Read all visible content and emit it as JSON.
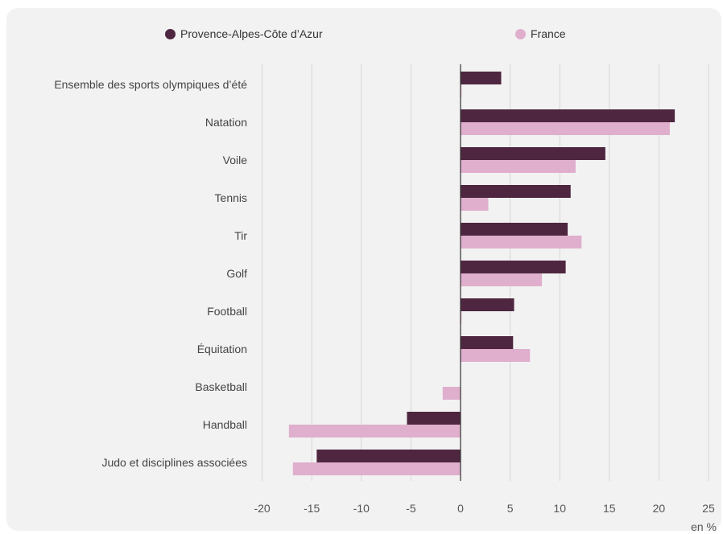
{
  "chart_data": {
    "type": "bar",
    "orientation": "horizontal",
    "categories": [
      "Ensemble des sports olympiques d’été",
      "Natation",
      "Voile",
      "Tennis",
      "Tir",
      "Golf",
      "Football",
      "Équitation",
      "Basketball",
      "Handball",
      "Judo et disciplines associées"
    ],
    "series": [
      {
        "name": "Provence-Alpes-Côte d’Azur",
        "color": "#4e2640",
        "values": [
          4.1,
          21.6,
          14.6,
          11.1,
          10.8,
          10.6,
          5.4,
          5.3,
          0,
          -5.4,
          -14.5
        ]
      },
      {
        "name": "France",
        "color": "#dfafcd",
        "values": [
          0.1,
          21.1,
          11.6,
          2.8,
          12.2,
          8.2,
          0.1,
          7.0,
          -1.8,
          -17.3,
          -16.9
        ]
      }
    ],
    "xlim": [
      -20,
      25
    ],
    "xticks": [
      "-20",
      "-15",
      "-10",
      "-5",
      "0",
      "5",
      "10",
      "15",
      "20",
      "25"
    ],
    "unit": "en %",
    "grid": true,
    "legend_position": "top"
  }
}
